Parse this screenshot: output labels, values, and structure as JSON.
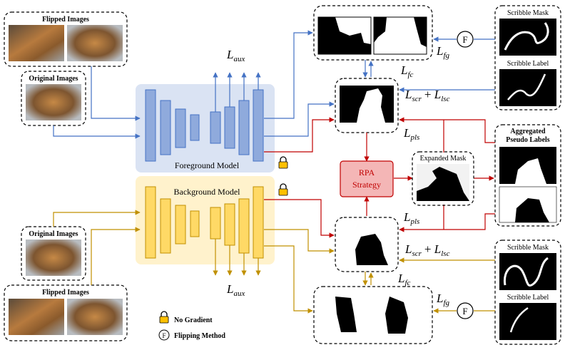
{
  "colors": {
    "blue": "#4472c4",
    "blue_fill": "#8faadc",
    "blue_panel": "#dae3f3",
    "gold": "#c09000",
    "gold_fill": "#ffd966",
    "gold_panel": "#fff2cc",
    "red": "#c00000",
    "rpa_fill": "#f4b6b6"
  },
  "top_left": {
    "flipped_title": "Flipped Images",
    "original_title": "Original Images"
  },
  "bottom_left": {
    "original_title": "Original Images",
    "flipped_title": "Flipped Images"
  },
  "foreground_model": {
    "label": "Foreground Model"
  },
  "background_model": {
    "label": "Background Model"
  },
  "loss_labels": {
    "aux_top": {
      "main": "L",
      "sub": "aux"
    },
    "aux_bottom": {
      "main": "L",
      "sub": "aux"
    },
    "fg_top": {
      "main": "L",
      "sub": "fg"
    },
    "fc_top": {
      "main": "L",
      "sub": "fc"
    },
    "scr_lsc_top": {
      "l1": "L",
      "s1": "scr",
      "plus": "+ ",
      "l2": "L",
      "s2": "lsc"
    },
    "pls_top": {
      "main": "L",
      "sub": "pls"
    },
    "pls_bottom": {
      "main": "L",
      "sub": "pls"
    },
    "scr_lsc_bottom": {
      "l1": "L",
      "s1": "scr",
      "plus": "+ ",
      "l2": "L",
      "s2": "lsc"
    },
    "fc_bottom": {
      "main": "L",
      "sub": "fc"
    },
    "fg_bottom": {
      "main": "L",
      "sub": "fg"
    }
  },
  "rpa": {
    "line1": "RPA",
    "line2": "Strategy"
  },
  "expanded_mask": {
    "title": "Expanded Mask"
  },
  "aggregated": {
    "line1": "Aggregated",
    "line2": "Pseudo Labels"
  },
  "scribble_top": {
    "mask_title": "Scribble Mask",
    "label_title": "Scribble Label"
  },
  "scribble_bottom": {
    "mask_title": "Scribble Mask",
    "label_title": "Scribble Label"
  },
  "flip_symbol": "F",
  "legend": {
    "no_gradient": "No Gradient",
    "flipping_method": "Flipping Method"
  }
}
